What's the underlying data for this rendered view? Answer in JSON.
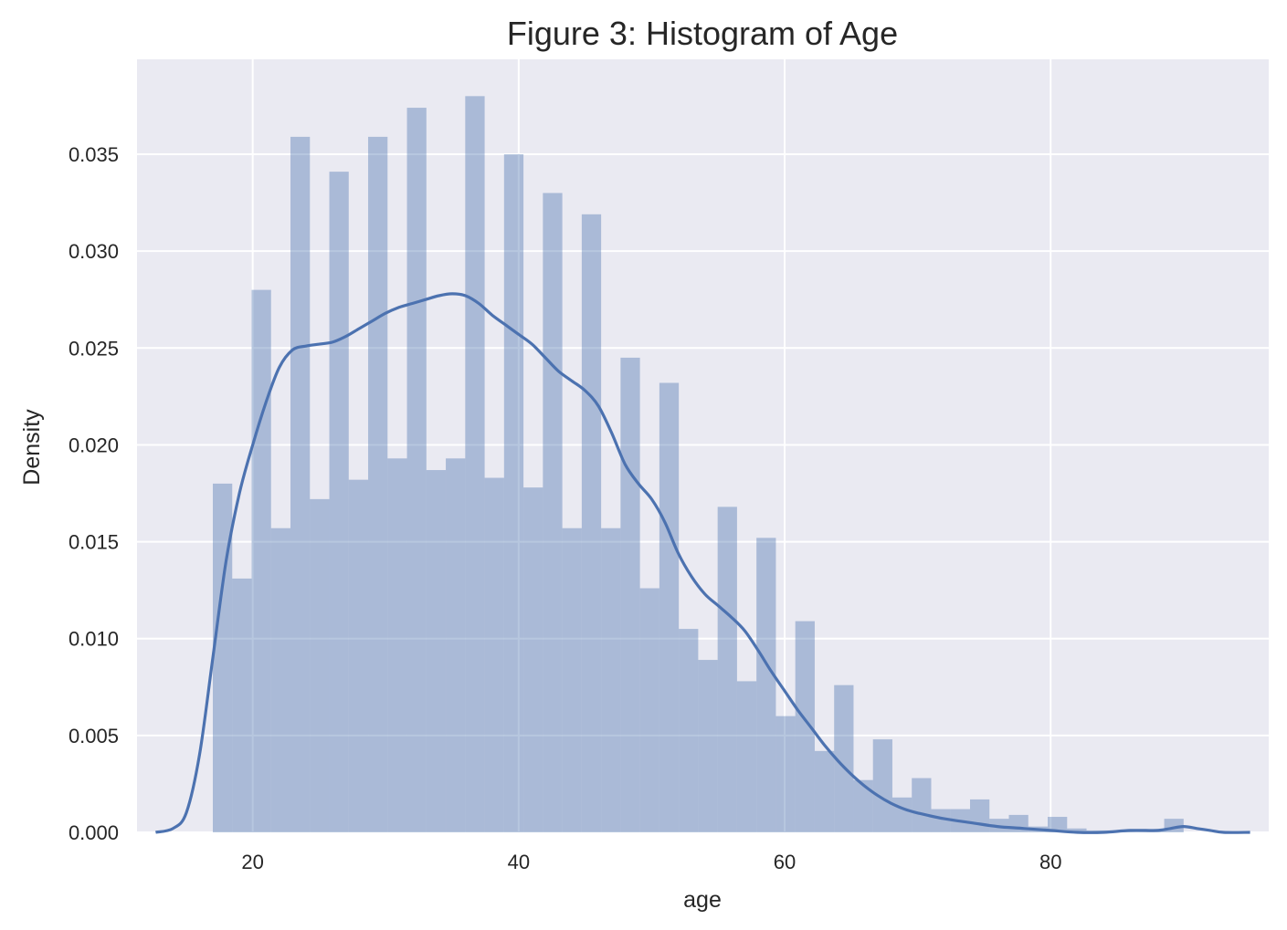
{
  "chart_data": {
    "type": "bar",
    "title": "Figure 3: Histogram of Age",
    "xlabel": "age",
    "ylabel": "Density",
    "xlim": [
      11.3,
      96.4
    ],
    "ylim": [
      0,
      0.0399
    ],
    "xticks": [
      "20",
      "40",
      "60",
      "80"
    ],
    "yticks": [
      "0.000",
      "0.005",
      "0.010",
      "0.015",
      "0.020",
      "0.025",
      "0.030",
      "0.035"
    ],
    "grid": true,
    "histogram": {
      "bin_edges": [
        17,
        18.46,
        19.92,
        21.38,
        22.84,
        24.3,
        25.76,
        27.22,
        28.68,
        30.14,
        31.6,
        33.06,
        34.52,
        35.98,
        37.44,
        38.9,
        40.36,
        41.82,
        43.28,
        44.74,
        46.2,
        47.66,
        49.12,
        50.58,
        52.04,
        53.5,
        54.96,
        56.42,
        57.88,
        59.34,
        60.8,
        62.26,
        63.72,
        65.18,
        66.64,
        68.1,
        69.56,
        71.02,
        72.48,
        73.94,
        75.4,
        76.86,
        78.32,
        79.78,
        81.24,
        82.7,
        84.16,
        85.62,
        87.08,
        88.54,
        90
      ],
      "density": [
        0.018,
        0.0131,
        0.028,
        0.0157,
        0.0359,
        0.0172,
        0.0341,
        0.0182,
        0.0359,
        0.0193,
        0.0374,
        0.0187,
        0.0193,
        0.038,
        0.0183,
        0.035,
        0.0178,
        0.033,
        0.0157,
        0.0319,
        0.0157,
        0.0245,
        0.0126,
        0.0232,
        0.0105,
        0.0089,
        0.0168,
        0.0078,
        0.0152,
        0.006,
        0.0109,
        0.0042,
        0.0076,
        0.0027,
        0.0048,
        0.0018,
        0.0028,
        0.0012,
        0.0012,
        0.0017,
        0.0007,
        0.0009,
        0.0003,
        0.0008,
        0.0002,
        0.0001,
        0.0001,
        0.0001,
        0.0001,
        0.0007
      ],
      "color": "#4c72b0"
    },
    "kde": {
      "x": [
        12.7,
        14,
        15,
        16,
        17,
        18,
        19,
        20,
        21,
        22,
        23,
        24,
        25,
        26,
        27,
        28,
        29,
        30,
        31,
        32,
        33,
        34,
        35,
        36,
        37,
        38,
        39,
        40,
        41,
        42,
        43,
        44,
        45,
        46,
        47,
        48,
        49,
        50,
        51,
        52,
        53,
        54,
        55,
        56,
        57,
        58,
        59,
        60,
        61,
        62,
        63,
        64,
        65,
        66,
        67,
        68,
        69,
        70,
        72,
        74,
        76,
        78,
        80,
        82,
        84,
        86,
        88,
        89,
        90,
        91,
        92,
        93,
        95
      ],
      "y": [
        0.0,
        0.0002,
        0.001,
        0.004,
        0.009,
        0.014,
        0.0175,
        0.02,
        0.0222,
        0.024,
        0.0249,
        0.0251,
        0.0252,
        0.0253,
        0.0256,
        0.026,
        0.0264,
        0.0268,
        0.0271,
        0.0273,
        0.0275,
        0.0277,
        0.0278,
        0.0277,
        0.0273,
        0.0267,
        0.0262,
        0.0257,
        0.0252,
        0.0245,
        0.0238,
        0.0233,
        0.0228,
        0.022,
        0.0206,
        0.019,
        0.018,
        0.0172,
        0.016,
        0.0144,
        0.0132,
        0.0123,
        0.0117,
        0.0111,
        0.0104,
        0.0094,
        0.0083,
        0.0073,
        0.0063,
        0.0054,
        0.0045,
        0.0037,
        0.003,
        0.0024,
        0.0019,
        0.0015,
        0.0012,
        0.001,
        0.0007,
        0.0005,
        0.0003,
        0.0002,
        0.0001,
        0.0,
        0.0,
        0.0001,
        0.0001,
        0.0002,
        0.0003,
        0.0002,
        0.0001,
        0.0,
        0.0
      ],
      "color": "#4c72b0"
    },
    "style": {
      "plot_background": "#eaeaf2",
      "grid_color": "#ffffff",
      "text_color": "#262626"
    }
  }
}
